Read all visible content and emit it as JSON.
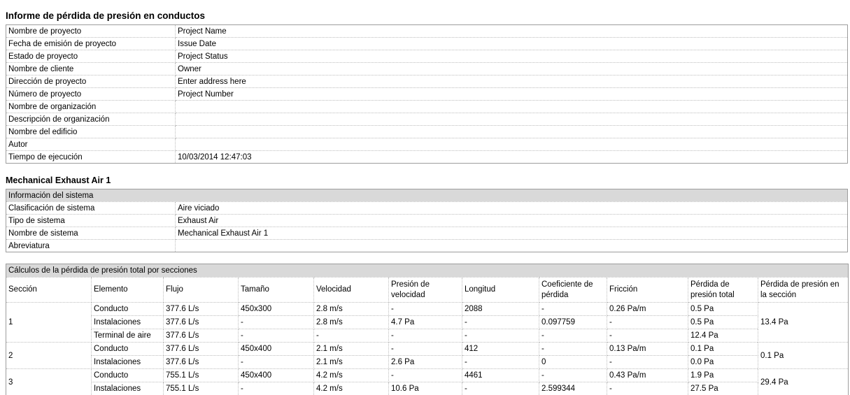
{
  "report": {
    "title": "Informe de pérdida de presión en conductos",
    "project_info": {
      "rows": [
        {
          "label": "Nombre de proyecto",
          "value": "Project Name"
        },
        {
          "label": "Fecha de emisión de proyecto",
          "value": "Issue Date"
        },
        {
          "label": "Estado de proyecto",
          "value": "Project Status"
        },
        {
          "label": "Nombre de cliente",
          "value": "Owner"
        },
        {
          "label": "Dirección de proyecto",
          "value": "Enter address here"
        },
        {
          "label": "Número de proyecto",
          "value": "Project Number"
        },
        {
          "label": "Nombre de organización",
          "value": ""
        },
        {
          "label": "Descripción de organización",
          "value": ""
        },
        {
          "label": "Nombre del edificio",
          "value": ""
        },
        {
          "label": "Autor",
          "value": ""
        },
        {
          "label": "Tiempo de ejecución",
          "value": "10/03/2014 12:47:03"
        }
      ]
    },
    "system_section": {
      "heading": "Mechanical Exhaust Air 1",
      "table_title": "Información del sistema",
      "rows": [
        {
          "label": "Clasificación de sistema",
          "value": "Aire viciado"
        },
        {
          "label": "Tipo de sistema",
          "value": "Exhaust Air"
        },
        {
          "label": "Nombre de sistema",
          "value": "Mechanical Exhaust Air 1"
        },
        {
          "label": "Abreviatura",
          "value": ""
        }
      ]
    },
    "calculations": {
      "table_title": "Cálculos de la pérdida de presión total por secciones",
      "columns": [
        "Sección",
        "Elemento",
        "Flujo",
        "Tamaño",
        "Velocidad",
        "Presión de velocidad",
        "Longitud",
        "Coeficiente de pérdida",
        "Fricción",
        "Pérdida de presión total",
        "Pérdida de presión en la sección"
      ],
      "sections": [
        {
          "section": "1",
          "section_loss": "13.4 Pa",
          "rows": [
            {
              "element": "Conducto",
              "flow": "377.6 L/s",
              "size": "450x300",
              "velocity": "2.8 m/s",
              "velocity_pressure": "-",
              "length": "2088",
              "loss_coefficient": "-",
              "friction": "0.26 Pa/m",
              "total_pressure_loss": "0.5 Pa"
            },
            {
              "element": "Instalaciones",
              "flow": "377.6 L/s",
              "size": "-",
              "velocity": "2.8 m/s",
              "velocity_pressure": "4.7 Pa",
              "length": "-",
              "loss_coefficient": "0.097759",
              "friction": "-",
              "total_pressure_loss": "0.5 Pa"
            },
            {
              "element": "Terminal de aire",
              "flow": "377.6 L/s",
              "size": "-",
              "velocity": "-",
              "velocity_pressure": "-",
              "length": "-",
              "loss_coefficient": "-",
              "friction": "-",
              "total_pressure_loss": "12.4 Pa"
            }
          ]
        },
        {
          "section": "2",
          "section_loss": "0.1 Pa",
          "rows": [
            {
              "element": "Conducto",
              "flow": "377.6 L/s",
              "size": "450x400",
              "velocity": "2.1 m/s",
              "velocity_pressure": "-",
              "length": "412",
              "loss_coefficient": "-",
              "friction": "0.13 Pa/m",
              "total_pressure_loss": "0.1 Pa"
            },
            {
              "element": "Instalaciones",
              "flow": "377.6 L/s",
              "size": "-",
              "velocity": "2.1 m/s",
              "velocity_pressure": "2.6 Pa",
              "length": "-",
              "loss_coefficient": "0",
              "friction": "-",
              "total_pressure_loss": "0.0 Pa"
            }
          ]
        },
        {
          "section": "3",
          "section_loss": "29.4 Pa",
          "rows": [
            {
              "element": "Conducto",
              "flow": "755.1 L/s",
              "size": "450x400",
              "velocity": "4.2 m/s",
              "velocity_pressure": "-",
              "length": "4461",
              "loss_coefficient": "-",
              "friction": "0.43 Pa/m",
              "total_pressure_loss": "1.9 Pa"
            },
            {
              "element": "Instalaciones",
              "flow": "755.1 L/s",
              "size": "-",
              "velocity": "4.2 m/s",
              "velocity_pressure": "10.6 Pa",
              "length": "-",
              "loss_coefficient": "2.599344",
              "friction": "-",
              "total_pressure_loss": "27.5 Pa"
            }
          ]
        }
      ]
    }
  }
}
